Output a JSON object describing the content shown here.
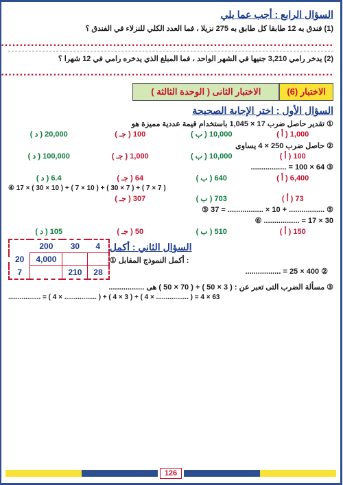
{
  "q4": {
    "header": "السؤال الرابع : أجب عما يلي",
    "p1": "(1) فندق به 12 طابقا كل طابق به 275 نزيلا ، فما العدد الكلي للنزلاء في الفندق ؟",
    "p2": "(2) يدخر رامي 3,210 جنيها في الشهر الواحد ، فما المبلغ الذي يدخره رامي في 12 شهرا ؟"
  },
  "banner": {
    "left": "الاختبار (6)",
    "right": "الاختبار الثانى ( الوحدة الثالثة )"
  },
  "q1": {
    "header": "السؤال الأول : اختر الإجابة الصحيحة",
    "s1": "① تقدير حاصل ضرب 17 × 1,045 باستخدام قيمة عددية مميزة هو",
    "s2": "② حاصل ضرب 250 × 4 يساوى",
    "s3": "................. = 100 × 64 ③",
    "s4": "④ 17 × ( 30 × 10 ) + ( 7 × 10 ) + ( 30 × 7 ) + ( 7 × 7 )",
    "s5": "⑤ 37 = ................. × 10 + ................. ⑤",
    "s6": "⑥ ................. = 17 × 30"
  },
  "opts": {
    "r1": {
      "a": "( أ ) 1,000",
      "b": "( ب ) 10,000",
      "c": "( جـ ) 100",
      "d": "( د ) 20,000"
    },
    "r2": {
      "a": "( أ ) 100",
      "b": "( ب ) 10,000",
      "c": "( جـ ) 1,000",
      "d": "( د ) 100,000"
    },
    "r3": {
      "a": "( أ ) 6,400",
      "b": "( ب ) 640",
      "c": "( جـ ) 64",
      "d": "( د ) 6.4"
    },
    "r4": {
      "a": "( أ ) 73",
      "b": "( ب ) 703",
      "c": "( جـ ) 307",
      "d": ""
    },
    "r5": {
      "a": "( أ ) 150",
      "b": "( ب ) 510",
      "c": "( جـ ) 50",
      "d": "( د ) 105"
    }
  },
  "q2": {
    "header": "السؤال الثاني : أكمل",
    "p1": "① أكمل النموذج المقابل :",
    "p2": "................. = 25 × 400 ②",
    "p3": "③ مسألة الضرب التى تعبر عن : ( 3 × 50 ) + ( 70 × 50 ) هى .................",
    "p4": "................. = ( 4 × ................. ) + ( 4 × 3 ) + ( 4 × ................. ) = 4 × 63"
  },
  "table": {
    "h": [
      "4",
      "30",
      "200"
    ],
    "r1": {
      "side": "20",
      "cells": [
        "",
        "",
        "4,000"
      ]
    },
    "r2": {
      "side": "7",
      "cells": [
        "28",
        "210",
        ""
      ]
    }
  },
  "page": "126"
}
